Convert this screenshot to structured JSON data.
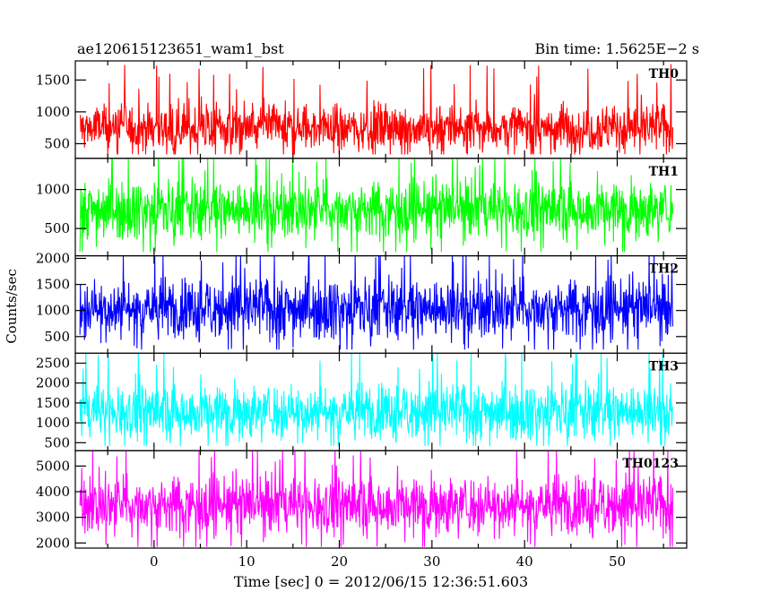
{
  "chart_data": {
    "type": "line",
    "title_left": "ae120615123651_wam1_bst",
    "title_right": "Bin time: 1.5625E−2 s",
    "xlabel": "Time [sec] 0 = 2012/06/15 12:36:51.603",
    "ylabel": "Counts/sec",
    "xlim": [
      -8.5,
      57.5
    ],
    "x_data_range": [
      -8.0,
      56.0
    ],
    "xticks": [
      0,
      10,
      20,
      30,
      40,
      50
    ],
    "grid": false,
    "panels": [
      {
        "label": "TH0",
        "color": "#ff0000",
        "ylim": [
          270,
          1800
        ],
        "yticks": [
          500,
          1000,
          1500
        ],
        "mean": 750,
        "spread": 190,
        "min": 330,
        "max": 1800
      },
      {
        "label": "TH1",
        "color": "#00ff00",
        "ylim": [
          150,
          1400
        ],
        "yticks": [
          500,
          1000
        ],
        "mean": 750,
        "spread": 180,
        "min": 200,
        "max": 1400
      },
      {
        "label": "TH2",
        "color": "#0000ff",
        "ylim": [
          180,
          2050
        ],
        "yticks": [
          500,
          1000,
          1500,
          2000
        ],
        "mean": 1050,
        "spread": 280,
        "min": 250,
        "max": 2050
      },
      {
        "label": "TH3",
        "color": "#00ffff",
        "ylim": [
          300,
          2750
        ],
        "yticks": [
          500,
          1000,
          1500,
          2000,
          2500
        ],
        "mean": 1300,
        "spread": 340,
        "min": 420,
        "max": 2750
      },
      {
        "label": "TH0123",
        "color": "#ff00ff",
        "ylim": [
          1800,
          5600
        ],
        "yticks": [
          2000,
          3000,
          4000,
          5000
        ],
        "mean": 3500,
        "spread": 560,
        "min": 1850,
        "max": 5600
      }
    ]
  }
}
